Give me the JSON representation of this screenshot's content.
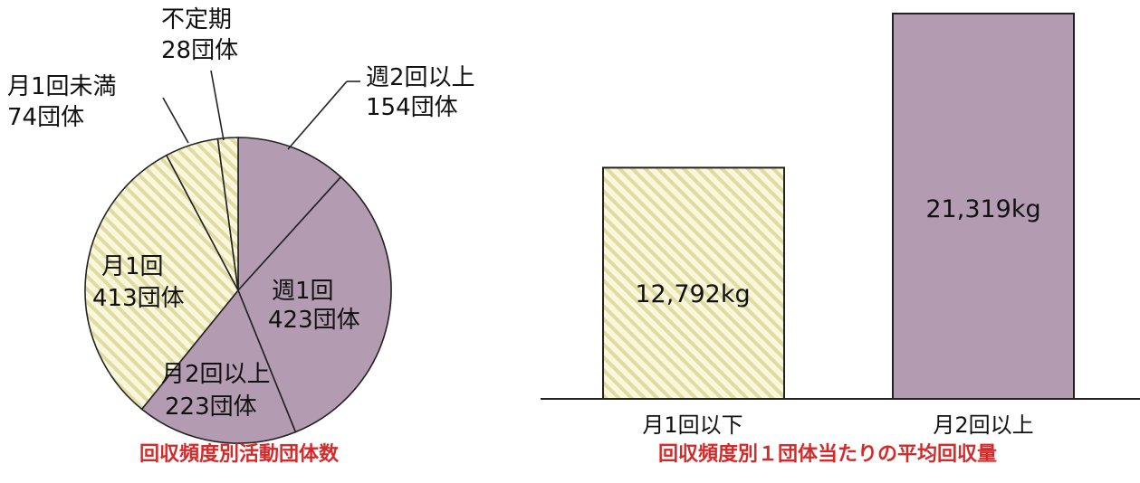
{
  "colors": {
    "purple": "#b39bb2",
    "cream": "#faf7dc",
    "stripe": "#e0dba0",
    "caption": "#d42a2a",
    "outline": "#222222"
  },
  "chart_data": [
    {
      "type": "pie",
      "title": "回収頻度別活動団体数",
      "slices": [
        {
          "label_line1": "週2回以上",
          "label_line2": "154団体",
          "value": 154,
          "fill": "purple"
        },
        {
          "label_line1": "週1回",
          "label_line2": "423団体",
          "value": 423,
          "fill": "purple"
        },
        {
          "label_line1": "月2回以上",
          "label_line2": "223団体",
          "value": 223,
          "fill": "purple"
        },
        {
          "label_line1": "月1回",
          "label_line2": "413団体",
          "value": 413,
          "fill": "striped"
        },
        {
          "label_line1": "月1回未満",
          "label_line2": "74団体",
          "value": 74,
          "fill": "striped"
        },
        {
          "label_line1": "不定期",
          "label_line2": "28団体",
          "value": 28,
          "fill": "striped"
        }
      ],
      "start_angle": "12 o'clock",
      "direction": "clockwise"
    },
    {
      "type": "bar",
      "title": "回収頻度別１団体当たりの平均回収量",
      "categories": [
        "月1回以下",
        "月2回以上"
      ],
      "values": [
        12792,
        21319
      ],
      "value_labels": [
        "12,792kg",
        "21,319kg"
      ],
      "fills": [
        "striped",
        "purple"
      ],
      "ylim": [
        0,
        21319
      ]
    }
  ]
}
